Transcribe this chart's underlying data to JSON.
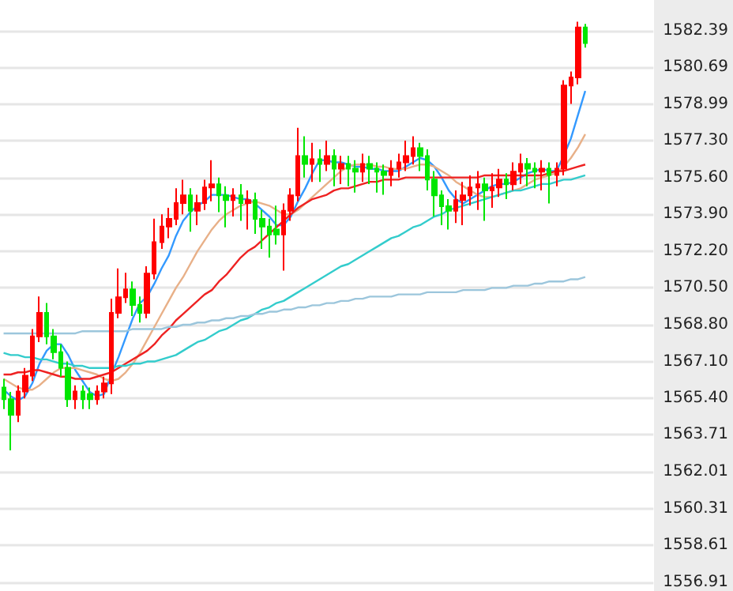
{
  "chart_data": {
    "type": "candlestick",
    "categories": [
      null,
      null,
      null,
      null,
      null,
      null,
      null,
      null,
      null,
      null,
      null,
      null,
      null,
      null,
      null,
      null,
      null,
      null,
      null,
      null,
      null,
      null,
      null,
      null,
      null,
      null,
      null,
      null,
      null,
      null,
      null,
      null,
      null,
      null,
      null,
      null,
      null,
      null,
      null,
      null,
      null,
      null,
      null,
      null,
      null,
      null,
      null,
      null,
      null,
      null,
      null,
      null,
      null,
      null,
      null,
      null,
      null,
      null,
      null,
      null,
      null,
      null,
      null,
      null,
      null,
      null,
      null,
      null,
      null,
      null,
      null,
      null,
      null,
      null,
      null,
      null,
      null,
      null,
      null,
      null,
      null,
      null
    ],
    "ohlc": [
      [
        1565.9,
        1566.3,
        1564.9,
        1565.36
      ],
      [
        1565.36,
        1565.7,
        1563.0,
        1564.64
      ],
      [
        1564.64,
        1566.0,
        1564.3,
        1565.72
      ],
      [
        1565.72,
        1566.8,
        1565.4,
        1566.45
      ],
      [
        1566.45,
        1568.6,
        1566.2,
        1568.26
      ],
      [
        1568.26,
        1570.1,
        1568.0,
        1569.35
      ],
      [
        1569.35,
        1569.8,
        1567.9,
        1568.26
      ],
      [
        1568.26,
        1568.6,
        1567.2,
        1567.53
      ],
      [
        1567.53,
        1567.9,
        1566.4,
        1566.81
      ],
      [
        1566.81,
        1567.1,
        1565.0,
        1565.36
      ],
      [
        1565.36,
        1566.0,
        1564.9,
        1565.72
      ],
      [
        1565.72,
        1566.0,
        1564.9,
        1565.36
      ],
      [
        1565.6,
        1565.9,
        1564.9,
        1565.36
      ],
      [
        1565.36,
        1566.0,
        1565.1,
        1565.72
      ],
      [
        1565.72,
        1566.4,
        1565.4,
        1566.09
      ],
      [
        1566.09,
        1570.0,
        1565.6,
        1569.35
      ],
      [
        1569.35,
        1571.4,
        1569.1,
        1570.07
      ],
      [
        1570.07,
        1571.2,
        1569.8,
        1570.43
      ],
      [
        1570.43,
        1570.8,
        1569.2,
        1569.71
      ],
      [
        1569.71,
        1570.1,
        1568.9,
        1569.35
      ],
      [
        1569.35,
        1571.5,
        1569.1,
        1571.16
      ],
      [
        1571.16,
        1573.7,
        1570.9,
        1572.61
      ],
      [
        1572.61,
        1573.9,
        1572.3,
        1573.33
      ],
      [
        1573.33,
        1574.2,
        1572.8,
        1573.69
      ],
      [
        1573.69,
        1575.1,
        1573.4,
        1574.42
      ],
      [
        1574.42,
        1575.5,
        1573.9,
        1574.78
      ],
      [
        1574.78,
        1575.1,
        1573.1,
        1574.06
      ],
      [
        1574.06,
        1574.8,
        1573.4,
        1574.42
      ],
      [
        1574.42,
        1575.5,
        1574.1,
        1575.14
      ],
      [
        1575.14,
        1576.4,
        1574.5,
        1575.29
      ],
      [
        1575.29,
        1575.6,
        1574.0,
        1574.78
      ],
      [
        1574.78,
        1575.2,
        1573.3,
        1574.56
      ],
      [
        1574.56,
        1575.1,
        1573.8,
        1574.78
      ],
      [
        1574.78,
        1575.3,
        1573.6,
        1574.42
      ],
      [
        1574.42,
        1575.0,
        1573.2,
        1574.56
      ],
      [
        1574.56,
        1574.9,
        1573.0,
        1573.69
      ],
      [
        1573.69,
        1574.1,
        1572.3,
        1573.33
      ],
      [
        1573.33,
        1573.7,
        1571.9,
        1572.97
      ],
      [
        1573.2,
        1574.3,
        1572.5,
        1572.97
      ],
      [
        1572.97,
        1574.4,
        1571.3,
        1574.06
      ],
      [
        1574.06,
        1575.1,
        1573.6,
        1574.78
      ],
      [
        1574.78,
        1577.9,
        1574.5,
        1576.59
      ],
      [
        1576.59,
        1577.5,
        1575.6,
        1576.23
      ],
      [
        1576.23,
        1577.2,
        1575.4,
        1576.45
      ],
      [
        1576.45,
        1576.9,
        1575.4,
        1576.23
      ],
      [
        1576.23,
        1577.3,
        1575.9,
        1576.59
      ],
      [
        1576.59,
        1576.9,
        1575.2,
        1576.01
      ],
      [
        1576.01,
        1576.6,
        1575.3,
        1576.23
      ],
      [
        1576.23,
        1576.6,
        1575.2,
        1576.01
      ],
      [
        1576.01,
        1576.4,
        1574.9,
        1575.87
      ],
      [
        1575.87,
        1576.7,
        1575.4,
        1576.23
      ],
      [
        1576.23,
        1576.6,
        1575.3,
        1576.01
      ],
      [
        1576.01,
        1576.3,
        1574.9,
        1575.87
      ],
      [
        1575.87,
        1576.2,
        1574.8,
        1575.72
      ],
      [
        1575.72,
        1576.4,
        1575.2,
        1576.01
      ],
      [
        1576.01,
        1576.7,
        1575.6,
        1576.3
      ],
      [
        1576.3,
        1577.3,
        1575.9,
        1576.59
      ],
      [
        1576.59,
        1577.5,
        1576.2,
        1576.96
      ],
      [
        1576.96,
        1577.2,
        1575.9,
        1576.59
      ],
      [
        1576.59,
        1576.9,
        1575.0,
        1575.51
      ],
      [
        1575.51,
        1575.9,
        1573.8,
        1574.78
      ],
      [
        1574.78,
        1575.0,
        1573.4,
        1574.27
      ],
      [
        1574.27,
        1574.6,
        1573.2,
        1574.06
      ],
      [
        1574.06,
        1575.0,
        1573.5,
        1574.56
      ],
      [
        1574.56,
        1575.4,
        1573.4,
        1574.78
      ],
      [
        1574.78,
        1575.7,
        1574.3,
        1575.14
      ],
      [
        1575.14,
        1575.9,
        1574.1,
        1575.29
      ],
      [
        1575.29,
        1575.6,
        1573.6,
        1575.0
      ],
      [
        1575.0,
        1575.8,
        1574.2,
        1575.14
      ],
      [
        1575.14,
        1576.0,
        1574.7,
        1575.51
      ],
      [
        1575.51,
        1575.8,
        1574.6,
        1575.29
      ],
      [
        1575.29,
        1576.3,
        1575.0,
        1575.87
      ],
      [
        1575.87,
        1576.7,
        1575.3,
        1576.23
      ],
      [
        1576.23,
        1576.5,
        1575.2,
        1576.01
      ],
      [
        1576.01,
        1576.3,
        1575.1,
        1575.87
      ],
      [
        1575.87,
        1576.4,
        1575.0,
        1576.01
      ],
      [
        1576.01,
        1576.3,
        1574.4,
        1575.72
      ],
      [
        1575.72,
        1576.3,
        1575.2,
        1576.01
      ],
      [
        1576.01,
        1580.1,
        1575.7,
        1579.85
      ],
      [
        1579.85,
        1580.5,
        1579.0,
        1580.22
      ],
      [
        1580.22,
        1582.8,
        1579.9,
        1582.53
      ],
      [
        1582.53,
        1582.7,
        1581.6,
        1581.81
      ]
    ],
    "colors": [
      "#00e600",
      "#00e600",
      "#ff0000",
      "#ff0000",
      "#ff0000",
      "#ff0000",
      "#00e600",
      "#00e600",
      "#00e600",
      "#00e600",
      "#ff0000",
      "#00e600",
      "#00e600",
      "#ff0000",
      "#ff0000",
      "#ff0000",
      "#ff0000",
      "#ff0000",
      "#00e600",
      "#00e600",
      "#ff0000",
      "#ff0000",
      "#ff0000",
      "#ff0000",
      "#ff0000",
      "#ff0000",
      "#00e600",
      "#ff0000",
      "#ff0000",
      "#ff0000",
      "#00e600",
      "#00e600",
      "#ff0000",
      "#00e600",
      "#ff0000",
      "#00e600",
      "#00e600",
      "#00e600",
      "#00e600",
      "#ff0000",
      "#ff0000",
      "#ff0000",
      "#00e600",
      "#ff0000",
      "#00e600",
      "#ff0000",
      "#00e600",
      "#ff0000",
      "#00e600",
      "#00e600",
      "#ff0000",
      "#00e600",
      "#00e600",
      "#00e600",
      "#ff0000",
      "#ff0000",
      "#ff0000",
      "#ff0000",
      "#00e600",
      "#00e600",
      "#00e600",
      "#00e600",
      "#00e600",
      "#ff0000",
      "#ff0000",
      "#ff0000",
      "#ff0000",
      "#00e600",
      "#ff0000",
      "#ff0000",
      "#00e600",
      "#ff0000",
      "#ff0000",
      "#00e600",
      "#00e600",
      "#ff0000",
      "#00e600",
      "#ff0000",
      "#ff0000",
      "#ff0000",
      "#ff0000",
      "#00e600"
    ],
    "series": [
      {
        "type": "line",
        "color": "#3399ff",
        "values": [
          1565.8,
          1565.5,
          1565.3,
          1565.5,
          1566.1,
          1567.0,
          1567.6,
          1567.9,
          1567.9,
          1567.4,
          1566.7,
          1566.2,
          1565.7,
          1565.5,
          1565.6,
          1566.5,
          1567.3,
          1568.2,
          1569.1,
          1569.8,
          1570.1,
          1570.7,
          1571.4,
          1572.0,
          1572.9,
          1573.6,
          1574.0,
          1574.3,
          1574.5,
          1574.8,
          1574.8,
          1574.8,
          1574.7,
          1574.6,
          1574.6,
          1574.4,
          1574.1,
          1573.8,
          1573.4,
          1573.4,
          1573.8,
          1574.5,
          1575.1,
          1575.8,
          1576.4,
          1576.4,
          1576.3,
          1576.3,
          1576.2,
          1576.1,
          1576.1,
          1576.0,
          1576.0,
          1575.9,
          1575.9,
          1575.9,
          1576.1,
          1576.3,
          1576.5,
          1576.4,
          1576.1,
          1575.6,
          1575.0,
          1574.6,
          1574.4,
          1574.6,
          1574.8,
          1575.0,
          1575.2,
          1575.3,
          1575.3,
          1575.4,
          1575.6,
          1575.8,
          1575.9,
          1576.0,
          1575.9,
          1575.9,
          1576.6,
          1577.4,
          1578.5,
          1579.6
        ]
      },
      {
        "type": "line",
        "color": "#e8b088",
        "values": [
          1566.3,
          1566.1,
          1565.9,
          1565.8,
          1565.8,
          1566.0,
          1566.3,
          1566.6,
          1566.8,
          1566.8,
          1566.8,
          1566.7,
          1566.6,
          1566.5,
          1566.3,
          1566.2,
          1566.3,
          1566.6,
          1567.0,
          1567.5,
          1568.1,
          1568.7,
          1569.3,
          1569.9,
          1570.5,
          1571.0,
          1571.6,
          1572.2,
          1572.7,
          1573.2,
          1573.6,
          1573.9,
          1574.1,
          1574.3,
          1574.4,
          1574.5,
          1574.4,
          1574.3,
          1574.1,
          1573.9,
          1573.9,
          1574.1,
          1574.4,
          1574.7,
          1575.0,
          1575.3,
          1575.6,
          1575.9,
          1576.1,
          1576.2,
          1576.2,
          1576.2,
          1576.1,
          1576.1,
          1576.0,
          1576.0,
          1576.0,
          1576.1,
          1576.2,
          1576.2,
          1576.1,
          1575.9,
          1575.7,
          1575.4,
          1575.2,
          1575.0,
          1574.8,
          1574.7,
          1574.7,
          1574.8,
          1574.9,
          1575.0,
          1575.1,
          1575.3,
          1575.5,
          1575.6,
          1575.7,
          1575.8,
          1576.1,
          1576.5,
          1577.0,
          1577.6
        ]
      },
      {
        "type": "line",
        "color": "#ee2222",
        "values": [
          1566.5,
          1566.5,
          1566.6,
          1566.6,
          1566.7,
          1566.7,
          1566.6,
          1566.5,
          1566.4,
          1566.4,
          1566.3,
          1566.3,
          1566.3,
          1566.4,
          1566.5,
          1566.6,
          1566.8,
          1567.0,
          1567.2,
          1567.4,
          1567.6,
          1567.9,
          1568.3,
          1568.6,
          1569.0,
          1569.3,
          1569.6,
          1569.9,
          1570.2,
          1570.4,
          1570.8,
          1571.1,
          1571.5,
          1571.9,
          1572.2,
          1572.4,
          1572.7,
          1573.0,
          1573.3,
          1573.6,
          1573.9,
          1574.2,
          1574.4,
          1574.6,
          1574.7,
          1574.8,
          1575.0,
          1575.1,
          1575.1,
          1575.2,
          1575.3,
          1575.4,
          1575.4,
          1575.5,
          1575.5,
          1575.5,
          1575.6,
          1575.6,
          1575.6,
          1575.6,
          1575.6,
          1575.6,
          1575.6,
          1575.6,
          1575.6,
          1575.6,
          1575.6,
          1575.7,
          1575.7,
          1575.7,
          1575.7,
          1575.7,
          1575.7,
          1575.7,
          1575.7,
          1575.7,
          1575.8,
          1575.9,
          1575.9,
          1576.0,
          1576.1,
          1576.2
        ]
      },
      {
        "type": "line",
        "color": "#33cccc",
        "values": [
          1567.5,
          1567.4,
          1567.4,
          1567.3,
          1567.3,
          1567.2,
          1567.2,
          1567.1,
          1567.0,
          1567.0,
          1566.9,
          1566.9,
          1566.8,
          1566.8,
          1566.8,
          1566.8,
          1566.9,
          1566.9,
          1567.0,
          1567.0,
          1567.1,
          1567.1,
          1567.2,
          1567.3,
          1567.4,
          1567.6,
          1567.8,
          1568.0,
          1568.1,
          1568.3,
          1568.5,
          1568.6,
          1568.8,
          1569.0,
          1569.1,
          1569.3,
          1569.5,
          1569.6,
          1569.8,
          1569.9,
          1570.1,
          1570.3,
          1570.5,
          1570.7,
          1570.9,
          1571.1,
          1571.3,
          1571.5,
          1571.6,
          1571.8,
          1572.0,
          1572.2,
          1572.4,
          1572.6,
          1572.8,
          1572.9,
          1573.1,
          1573.3,
          1573.4,
          1573.6,
          1573.8,
          1573.9,
          1574.1,
          1574.2,
          1574.3,
          1574.4,
          1574.5,
          1574.6,
          1574.7,
          1574.8,
          1574.9,
          1575.0,
          1575.0,
          1575.1,
          1575.2,
          1575.3,
          1575.3,
          1575.4,
          1575.5,
          1575.5,
          1575.6,
          1575.7
        ]
      },
      {
        "type": "line",
        "color": "#9cc6dc",
        "values": [
          1568.4,
          1568.4,
          1568.4,
          1568.4,
          1568.4,
          1568.4,
          1568.4,
          1568.4,
          1568.4,
          1568.4,
          1568.4,
          1568.5,
          1568.5,
          1568.5,
          1568.5,
          1568.5,
          1568.5,
          1568.5,
          1568.6,
          1568.6,
          1568.6,
          1568.6,
          1568.6,
          1568.7,
          1568.7,
          1568.8,
          1568.8,
          1568.9,
          1568.9,
          1569.0,
          1569.0,
          1569.1,
          1569.1,
          1569.2,
          1569.2,
          1569.3,
          1569.3,
          1569.4,
          1569.4,
          1569.5,
          1569.5,
          1569.6,
          1569.6,
          1569.7,
          1569.7,
          1569.8,
          1569.8,
          1569.9,
          1569.9,
          1570.0,
          1570.0,
          1570.1,
          1570.1,
          1570.1,
          1570.1,
          1570.2,
          1570.2,
          1570.2,
          1570.2,
          1570.3,
          1570.3,
          1570.3,
          1570.3,
          1570.3,
          1570.4,
          1570.4,
          1570.4,
          1570.4,
          1570.5,
          1570.5,
          1570.5,
          1570.6,
          1570.6,
          1570.6,
          1570.7,
          1570.7,
          1570.8,
          1570.8,
          1570.8,
          1570.9,
          1570.9,
          1571.0
        ]
      }
    ],
    "ylim": [
      1556.5,
      1583.8
    ],
    "yticks": [
      1582.39,
      1580.69,
      1578.99,
      {
        "value": 1577.3,
        "label": "1577.30"
      },
      {
        "value": 1575.6,
        "label": "1575.60"
      },
      {
        "value": 1573.9,
        "label": "1573.90"
      },
      {
        "value": 1572.2,
        "label": "1572.20"
      },
      {
        "value": 1570.5,
        "label": "1570.50"
      },
      {
        "value": 1568.8,
        "label": "1568.80"
      },
      {
        "value": 1567.1,
        "label": "1567.10"
      },
      {
        "value": 1565.4,
        "label": "1565.40"
      },
      1563.71,
      1562.01,
      1560.31,
      1558.61,
      1556.91
    ],
    "grid": "y",
    "tick_labels": "y",
    "line_style": "solid"
  }
}
